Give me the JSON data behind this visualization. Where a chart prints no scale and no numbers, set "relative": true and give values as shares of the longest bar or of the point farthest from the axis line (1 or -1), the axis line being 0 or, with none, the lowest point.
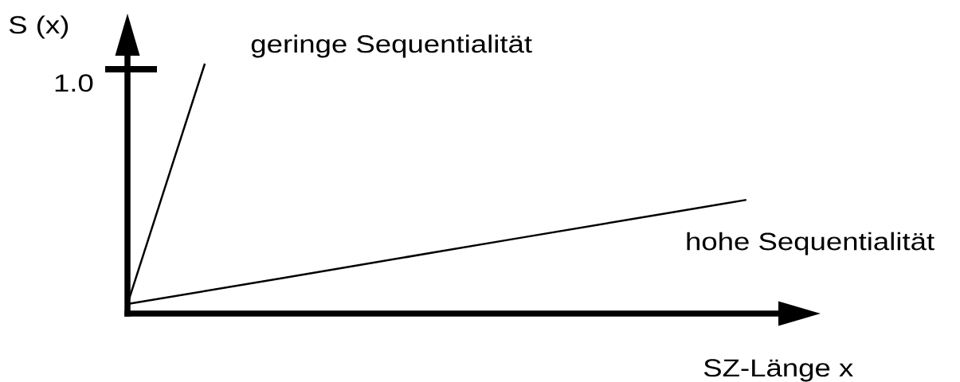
{
  "chart_data": {
    "type": "line",
    "relative": true,
    "xlabel": "SZ-Länge x",
    "ylabel": "S (x)",
    "legend": false,
    "categories": [
      null,
      null,
      null,
      null,
      null,
      null,
      null,
      null,
      null
    ],
    "series": [
      {
        "name": "geringe Sequentialität",
        "color": "#000000",
        "values": [
          0.038,
          1,
          null,
          null,
          null,
          null,
          null,
          null,
          null
        ]
      },
      {
        "name": "hohe Sequentialität",
        "color": "#000000",
        "values": [
          0.038,
          0.09,
          0.142,
          0.194,
          0.247,
          0.299,
          0.351,
          0.403,
          0.455
        ]
      }
    ],
    "annotations": [
      "1.0"
    ]
  }
}
